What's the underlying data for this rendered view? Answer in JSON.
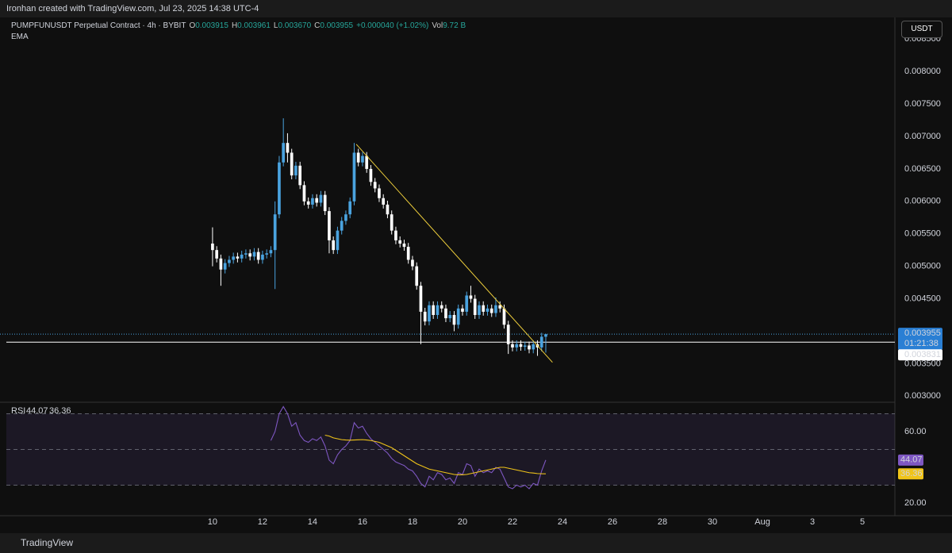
{
  "header": {
    "credit": "Ironhan created with TradingView.com, Jul 23, 2025 14:38 UTC-4",
    "footer": "TradingView",
    "currency": "USDT"
  },
  "chart_data": {
    "type": "candlestick",
    "title": "PUMPFUNUSDT Perpetual Contract · 4h · BYBIT",
    "legend_values": [
      {
        "label": "O",
        "value": "0.003915"
      },
      {
        "label": "H",
        "value": "0.003961"
      },
      {
        "label": "L",
        "value": "0.003670"
      },
      {
        "label": "C",
        "value": "0.003955"
      },
      {
        "label": "",
        "value": "+0.000040 (+1.02%)"
      },
      {
        "label": "Vol",
        "value": "9.72 B"
      }
    ],
    "indicator_label": "EMA",
    "countdown": "01:21:38",
    "up_color": "#4aa3df",
    "down_color": "#ffffff",
    "grid": false,
    "x": [
      10,
      10.167,
      10.333,
      10.5,
      10.667,
      10.833,
      11,
      11.167,
      11.333,
      11.5,
      11.667,
      11.833,
      12,
      12.167,
      12.333,
      12.5,
      12.667,
      12.833,
      13,
      13.167,
      13.333,
      13.5,
      13.667,
      13.833,
      14,
      14.167,
      14.333,
      14.5,
      14.667,
      14.833,
      15,
      15.167,
      15.333,
      15.5,
      15.667,
      15.833,
      16,
      16.167,
      16.333,
      16.5,
      16.667,
      16.833,
      17,
      17.167,
      17.333,
      17.5,
      17.667,
      17.833,
      18,
      18.167,
      18.333,
      18.5,
      18.667,
      18.833,
      19,
      19.167,
      19.333,
      19.5,
      19.667,
      19.833,
      20,
      20.167,
      20.333,
      20.5,
      20.667,
      20.833,
      21,
      21.167,
      21.333,
      21.5,
      21.667,
      21.833,
      22,
      22.167,
      22.333,
      22.5,
      22.667,
      22.833,
      23,
      23.167,
      23.333
    ],
    "open": [
      0.00535,
      0.00525,
      0.00512,
      0.00495,
      0.00505,
      0.0051,
      0.00515,
      0.00512,
      0.00518,
      0.0052,
      0.00515,
      0.00522,
      0.0051,
      0.00518,
      0.0052,
      0.00525,
      0.0058,
      0.0066,
      0.0069,
      0.00675,
      0.0064,
      0.00655,
      0.00625,
      0.006,
      0.00595,
      0.00605,
      0.00598,
      0.0061,
      0.00585,
      0.0054,
      0.00525,
      0.00555,
      0.0057,
      0.0058,
      0.006,
      0.00675,
      0.0066,
      0.0067,
      0.0065,
      0.0063,
      0.0062,
      0.00605,
      0.00595,
      0.0058,
      0.00555,
      0.0054,
      0.00535,
      0.0053,
      0.0051,
      0.005,
      0.0047,
      0.0043,
      0.00415,
      0.0044,
      0.00425,
      0.0044,
      0.00435,
      0.0042,
      0.00425,
      0.0041,
      0.00435,
      0.0043,
      0.00455,
      0.0045,
      0.00425,
      0.0044,
      0.0043,
      0.00435,
      0.00428,
      0.0044,
      0.00435,
      0.0041,
      0.0038,
      0.00375,
      0.0038,
      0.00376,
      0.00378,
      0.00372,
      0.0038,
      0.00375,
      0.003915
    ],
    "high": [
      0.0056,
      0.00531,
      0.00518,
      0.00511,
      0.00516,
      0.00521,
      0.00521,
      0.00524,
      0.00526,
      0.00526,
      0.00528,
      0.00528,
      0.00524,
      0.00526,
      0.00531,
      0.006,
      0.0067,
      0.00728,
      0.00705,
      0.00681,
      0.00661,
      0.00661,
      0.00631,
      0.00606,
      0.00611,
      0.00611,
      0.00616,
      0.00616,
      0.00591,
      0.00546,
      0.00561,
      0.00576,
      0.00586,
      0.00606,
      0.0069,
      0.00681,
      0.00676,
      0.00676,
      0.00656,
      0.00636,
      0.00626,
      0.00611,
      0.00601,
      0.00586,
      0.00561,
      0.00546,
      0.00541,
      0.00536,
      0.00516,
      0.00506,
      0.00476,
      0.00436,
      0.00446,
      0.00446,
      0.00446,
      0.00446,
      0.00441,
      0.00431,
      0.00431,
      0.00441,
      0.00441,
      0.00461,
      0.0047,
      0.00456,
      0.00446,
      0.00446,
      0.00441,
      0.00441,
      0.00452,
      0.00446,
      0.00441,
      0.00416,
      0.00386,
      0.00386,
      0.00386,
      0.00384,
      0.00384,
      0.00386,
      0.00386,
      0.003975,
      0.003961
    ],
    "low": [
      0.005,
      0.00506,
      0.0047,
      0.00489,
      0.00499,
      0.00504,
      0.00506,
      0.00506,
      0.00512,
      0.00509,
      0.00509,
      0.00504,
      0.00504,
      0.00512,
      0.00514,
      0.00465,
      0.00574,
      0.00654,
      0.0066,
      0.00634,
      0.00634,
      0.00619,
      0.00594,
      0.00589,
      0.00589,
      0.00592,
      0.00592,
      0.00579,
      0.0052,
      0.00519,
      0.00519,
      0.00549,
      0.00564,
      0.00574,
      0.00594,
      0.00654,
      0.00654,
      0.00644,
      0.00624,
      0.00614,
      0.00599,
      0.00589,
      0.00574,
      0.00549,
      0.00534,
      0.00529,
      0.00524,
      0.00504,
      0.00494,
      0.00464,
      0.0038,
      0.00409,
      0.00409,
      0.00419,
      0.00419,
      0.00429,
      0.00414,
      0.00414,
      0.004,
      0.00404,
      0.00424,
      0.00424,
      0.00444,
      0.00419,
      0.00419,
      0.00424,
      0.00424,
      0.00422,
      0.00422,
      0.00429,
      0.00404,
      0.00365,
      0.00369,
      0.00369,
      0.0037,
      0.0037,
      0.00366,
      0.00366,
      0.00362,
      0.00369,
      0.00367
    ],
    "close": [
      0.00525,
      0.00512,
      0.00495,
      0.00505,
      0.0051,
      0.00515,
      0.00512,
      0.00518,
      0.0052,
      0.00515,
      0.00522,
      0.0051,
      0.00518,
      0.0052,
      0.00525,
      0.0058,
      0.0066,
      0.0069,
      0.00675,
      0.0064,
      0.00655,
      0.00625,
      0.006,
      0.00595,
      0.00605,
      0.00598,
      0.0061,
      0.00585,
      0.0054,
      0.00525,
      0.00555,
      0.0057,
      0.0058,
      0.006,
      0.00675,
      0.0066,
      0.0067,
      0.0065,
      0.0063,
      0.0062,
      0.00605,
      0.00595,
      0.0058,
      0.00555,
      0.0054,
      0.00535,
      0.0053,
      0.0051,
      0.005,
      0.0047,
      0.0043,
      0.00415,
      0.0044,
      0.00425,
      0.0044,
      0.00435,
      0.0042,
      0.00425,
      0.0041,
      0.00435,
      0.0043,
      0.00455,
      0.0045,
      0.00425,
      0.0044,
      0.0043,
      0.00435,
      0.00428,
      0.0044,
      0.00435,
      0.0041,
      0.0038,
      0.00375,
      0.0038,
      0.00376,
      0.00378,
      0.00372,
      0.0038,
      0.00375,
      0.003915,
      0.003955
    ],
    "xlim": [
      1.75,
      37.3
    ],
    "xticks": [
      10,
      12,
      14,
      16,
      18,
      20,
      22,
      24,
      26,
      28,
      30,
      {
        "value": 32,
        "label": "Aug"
      },
      {
        "value": 34,
        "label": "3"
      },
      {
        "value": 36,
        "label": "5"
      }
    ],
    "ylim": [
      0.00293,
      0.00876
    ],
    "yticks": [
      {
        "value": 0.003,
        "label": "0.003000"
      },
      {
        "value": 0.0035,
        "label": "0.003500"
      },
      {
        "value": 0.0045,
        "label": "0.004500"
      },
      {
        "value": 0.005,
        "label": "0.005000"
      },
      {
        "value": 0.0055,
        "label": "0.005500"
      },
      {
        "value": 0.006,
        "label": "0.006000"
      },
      {
        "value": 0.0065,
        "label": "0.006500"
      },
      {
        "value": 0.007,
        "label": "0.007000"
      },
      {
        "value": 0.0075,
        "label": "0.007500"
      },
      {
        "value": 0.008,
        "label": "0.008000"
      },
      {
        "value": 0.0085,
        "label": "0.008500"
      }
    ],
    "hline": 0.003831,
    "trendline": {
      "x": [
        15.75,
        23.6
      ],
      "y": [
        0.00688,
        0.00352
      ],
      "color": "#f0d03c"
    },
    "rsi": {
      "title": "RSI",
      "ylim": [
        12.9,
        75.1
      ],
      "yticks": [
        {
          "value": 20,
          "label": "20.00"
        },
        {
          "value": 60,
          "label": "60.00"
        }
      ],
      "bands": [
        30,
        50,
        70
      ],
      "series": [
        {
          "name": "RSI",
          "color": "#7e57c2",
          "values": [
            null,
            null,
            null,
            null,
            null,
            null,
            null,
            null,
            null,
            null,
            null,
            null,
            null,
            null,
            55,
            60,
            70,
            74,
            70,
            63,
            65,
            58,
            55,
            54,
            56,
            55,
            57,
            52,
            44,
            42,
            47,
            50,
            52,
            55,
            65,
            62,
            63,
            59,
            56,
            54,
            52,
            50,
            48,
            45,
            43,
            42,
            41,
            39,
            38,
            35,
            31,
            29,
            35,
            33,
            37,
            36,
            33,
            34,
            31,
            37,
            36,
            42,
            41,
            35,
            39,
            37,
            38,
            37,
            40,
            39,
            34,
            29,
            28,
            30,
            29,
            30,
            28,
            31,
            30,
            38,
            44.07
          ]
        },
        {
          "color": "#f0c419",
          "values": [
            null,
            null,
            null,
            null,
            null,
            null,
            null,
            null,
            null,
            null,
            null,
            null,
            null,
            null,
            null,
            null,
            null,
            null,
            null,
            null,
            null,
            null,
            null,
            null,
            null,
            null,
            null,
            58,
            57.5,
            56.5,
            56,
            55.5,
            55.3,
            55.2,
            55.3,
            55.4,
            55.5,
            55.3,
            55,
            54.5,
            54,
            53,
            52,
            51,
            49.5,
            48,
            46.5,
            45,
            43.5,
            42,
            41,
            40,
            39,
            38.5,
            38,
            37.5,
            37,
            36.5,
            36,
            35.8,
            35.8,
            36,
            36.5,
            37,
            37.5,
            38,
            38.5,
            39,
            39.5,
            40,
            40,
            39.5,
            39,
            38.5,
            38,
            37.5,
            37,
            36.8,
            36.5,
            36.4,
            36.36
          ]
        }
      ]
    }
  }
}
